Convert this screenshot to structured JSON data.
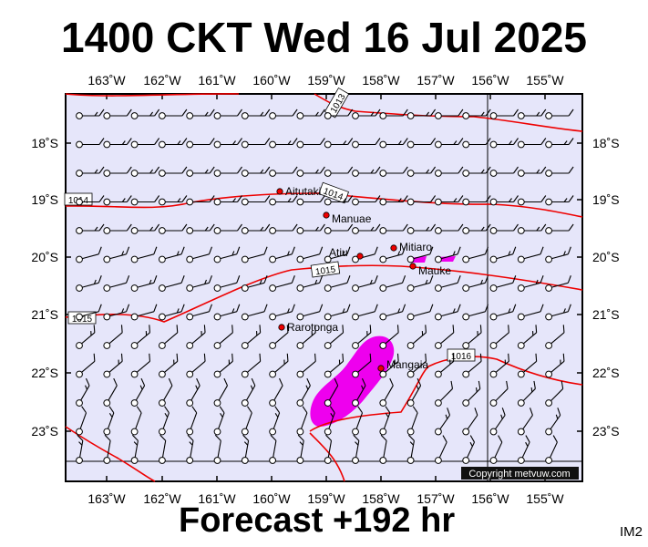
{
  "title": "1400 CKT Wed 16 Jul 2025",
  "footer": "Forecast +192 hr",
  "image_code": "IM2",
  "copyright": "Copyright metvuw.com",
  "map": {
    "lon_labels": [
      "163˚W",
      "162˚W",
      "161˚W",
      "160˚W",
      "159˚W",
      "158˚W",
      "157˚W",
      "156˚W",
      "155˚W"
    ],
    "lat_labels": [
      "18˚S",
      "19˚S",
      "20˚S",
      "21˚S",
      "22˚S",
      "23˚S"
    ],
    "isobar_labels": [
      "1013",
      "1014",
      "1014",
      "1015",
      "1015",
      "1016"
    ],
    "places": [
      "Aitutaki",
      "Manuae",
      "Atiu",
      "Mitiaro",
      "Mauke",
      "Rarotonga",
      "Mangaia"
    ]
  },
  "colors": {
    "background": "#e6e6fa",
    "isobar": "#ee0000",
    "rain": "#ee00ee",
    "place_marker": "#ee0000",
    "wind_barb": "#000000"
  }
}
